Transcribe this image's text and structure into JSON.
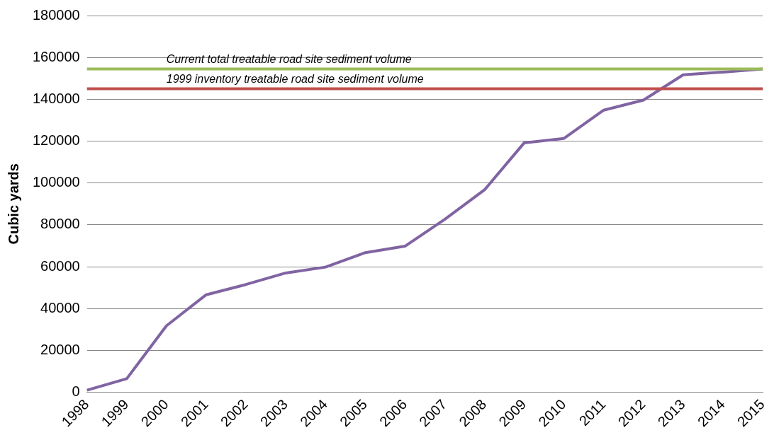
{
  "chart_data": {
    "type": "line",
    "ylabel": "Cubic yards",
    "categories": [
      "1998",
      "1999",
      "2000",
      "2001",
      "2002",
      "2003",
      "2004",
      "2005",
      "2006",
      "2007",
      "2008",
      "2009",
      "2010",
      "2011",
      "2012",
      "2013",
      "2014",
      "2015"
    ],
    "series": [
      {
        "color": "#8064a2",
        "values": [
          1000,
          6500,
          31800,
          46600,
          51500,
          57000,
          59800,
          66700,
          69800,
          82600,
          96700,
          119200,
          121300,
          134800,
          139600,
          151700,
          153000,
          154500
        ]
      }
    ],
    "ylim": [
      0,
      180000
    ],
    "yticks": [
      0,
      20000,
      40000,
      60000,
      80000,
      100000,
      120000,
      140000,
      160000,
      180000
    ],
    "ref_lines": [
      {
        "axis": "y",
        "value": 154500,
        "label": "Current total treatable road site sediment volume",
        "color": "#9bbb59"
      },
      {
        "axis": "y",
        "value": 145000,
        "label": "1999 inventory treatable road site sediment volume",
        "color": "#c0504d"
      }
    ],
    "grid": "y",
    "legend": false,
    "marker": "none",
    "line_style": "solid"
  }
}
